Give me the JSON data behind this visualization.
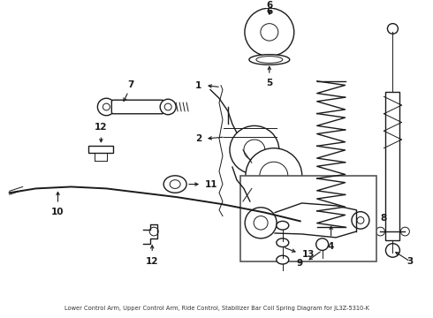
{
  "subtitle": "Lower Control Arm, Upper Control Arm, Ride Control, Stabilizer Bar Coil Spring Diagram for JL3Z-5310-K",
  "bg": "#ffffff",
  "lc": "#1a1a1a",
  "fig_w": 4.9,
  "fig_h": 3.6,
  "dpi": 100
}
